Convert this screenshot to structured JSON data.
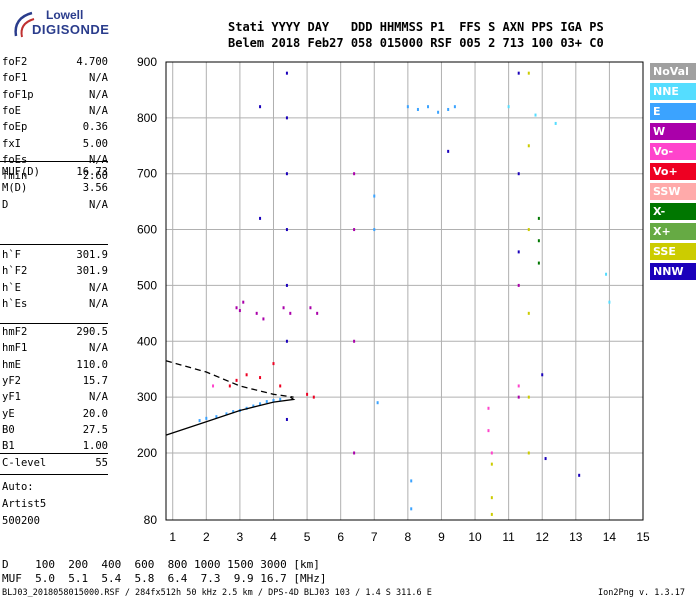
{
  "logo": {
    "line1": "Lowell",
    "line2": "DIGISONDE"
  },
  "header": {
    "line1": "Stati YYYY DAY   DDD HHMMSS P1  FFS S AXN PPS IGA PS",
    "line2": "Belem 2018 Feb27 058 015000 RSF 005 2 713 100 03+ C0"
  },
  "params_group1": [
    {
      "label": "foF2",
      "value": "4.700"
    },
    {
      "label": "foF1",
      "value": "N/A"
    },
    {
      "label": "foF1p",
      "value": "N/A"
    },
    {
      "label": "foE",
      "value": "N/A"
    },
    {
      "label": "foEp",
      "value": "0.36"
    },
    {
      "label": "fxI",
      "value": "5.00"
    },
    {
      "label": "foEs",
      "value": "N/A"
    },
    {
      "label": "fmin",
      "value": "2.60"
    }
  ],
  "params_group2": [
    {
      "label": "MUF(D)",
      "value": "16.73"
    },
    {
      "label": "M(D)",
      "value": "3.56"
    },
    {
      "label": "D",
      "value": "N/A"
    }
  ],
  "params_group3": [
    {
      "label": "h`F",
      "value": "301.9"
    },
    {
      "label": "h`F2",
      "value": "301.9"
    },
    {
      "label": "h`E",
      "value": "N/A"
    },
    {
      "label": "h`Es",
      "value": "N/A"
    }
  ],
  "params_group4": [
    {
      "label": "hmF2",
      "value": "290.5"
    },
    {
      "label": "hmF1",
      "value": "N/A"
    },
    {
      "label": "hmE",
      "value": "110.0"
    },
    {
      "label": "yF2",
      "value": "15.7"
    },
    {
      "label": "yF1",
      "value": "N/A"
    },
    {
      "label": "yE",
      "value": "20.0"
    },
    {
      "label": "B0",
      "value": "27.5"
    },
    {
      "label": "B1",
      "value": "1.00"
    }
  ],
  "params_group5": [
    {
      "label": "C-level",
      "value": "55"
    }
  ],
  "auto": {
    "line1": "Auto:",
    "line2": "Artist5",
    "line3": "500200"
  },
  "legend": [
    {
      "label": "NoVal",
      "color": "#a0a0a0"
    },
    {
      "label": "NNE",
      "color": "#55ddff"
    },
    {
      "label": "E",
      "color": "#3ba3ff"
    },
    {
      "label": "W",
      "color": "#aa00aa"
    },
    {
      "label": "Vo-",
      "color": "#ff44cc"
    },
    {
      "label": "Vo+",
      "color": "#ee0022"
    },
    {
      "label": "SSW",
      "color": "#ffaaaa"
    },
    {
      "label": "X-",
      "color": "#007700"
    },
    {
      "label": "X+",
      "color": "#66aa44"
    },
    {
      "label": "SSE",
      "color": "#cccc00"
    },
    {
      "label": "NNW",
      "color": "#1a00bb"
    }
  ],
  "bottom": {
    "d_row": "D    100  200  400  600  800 1000 1500 3000 [km]",
    "muf_row": "MUF  5.0  5.1  5.4  5.8  6.4  7.3  9.9 16.7 [MHz]"
  },
  "footer": {
    "left": "BLJ03_2018058015000.RSF / 284fx512h 50 kHz 2.5 km / DPS-4D BLJ03 103 / 1.4 S 311.6 E",
    "right": "Ion2Png v. 1.3.17"
  },
  "chart_data": {
    "type": "scatter",
    "xlim": [
      0.8,
      15
    ],
    "ylim": [
      80,
      900
    ],
    "x_ticks": [
      1,
      2,
      3,
      4,
      5,
      6,
      7,
      8,
      9,
      10,
      11,
      12,
      13,
      14,
      15
    ],
    "y_ticks": [
      80,
      200,
      300,
      400,
      500,
      600,
      700,
      800,
      900
    ],
    "grid": true,
    "profile_line": [
      [
        0.8,
        232
      ],
      [
        2.0,
        256
      ],
      [
        3.0,
        276
      ],
      [
        4.0,
        291
      ],
      [
        4.6,
        296
      ],
      [
        4.5,
        300
      ]
    ],
    "trace_dashed": [
      [
        0.8,
        365
      ],
      [
        2.0,
        345
      ],
      [
        3.0,
        320
      ],
      [
        4.0,
        305
      ],
      [
        4.6,
        300
      ]
    ],
    "series": [
      {
        "color": "#3ba3ff",
        "points": [
          [
            1.8,
            258
          ],
          [
            2.0,
            262
          ],
          [
            2.3,
            265
          ],
          [
            2.6,
            270
          ],
          [
            2.8,
            274
          ],
          [
            3.0,
            276
          ],
          [
            3.2,
            280
          ],
          [
            3.4,
            284
          ],
          [
            3.6,
            288
          ],
          [
            3.8,
            292
          ],
          [
            4.0,
            294
          ],
          [
            4.2,
            296
          ]
        ]
      },
      {
        "color": "#aa00aa",
        "points": [
          [
            2.9,
            460
          ],
          [
            3.0,
            455
          ],
          [
            3.1,
            470
          ],
          [
            3.5,
            450
          ],
          [
            3.7,
            440
          ],
          [
            4.3,
            460
          ],
          [
            4.5,
            450
          ],
          [
            5.1,
            460
          ],
          [
            5.3,
            450
          ],
          [
            6.4,
            700
          ],
          [
            6.4,
            600
          ],
          [
            6.4,
            400
          ],
          [
            6.4,
            200
          ],
          [
            11.3,
            500
          ],
          [
            11.3,
            300
          ]
        ]
      },
      {
        "color": "#ee0022",
        "points": [
          [
            2.7,
            320
          ],
          [
            2.9,
            330
          ],
          [
            3.2,
            340
          ],
          [
            3.6,
            335
          ],
          [
            4.0,
            360
          ],
          [
            4.2,
            320
          ],
          [
            5.0,
            305
          ],
          [
            5.2,
            300
          ]
        ]
      },
      {
        "color": "#1a00bb",
        "points": [
          [
            4.4,
            880
          ],
          [
            4.4,
            800
          ],
          [
            4.4,
            700
          ],
          [
            4.4,
            600
          ],
          [
            4.4,
            500
          ],
          [
            4.4,
            400
          ],
          [
            4.4,
            260
          ],
          [
            3.6,
            820
          ],
          [
            3.6,
            620
          ],
          [
            9.2,
            740
          ],
          [
            11.3,
            880
          ],
          [
            11.3,
            700
          ],
          [
            11.3,
            560
          ],
          [
            12.0,
            340
          ],
          [
            12.1,
            190
          ],
          [
            13.1,
            160
          ]
        ]
      },
      {
        "color": "#3ba3ff",
        "points": [
          [
            8.0,
            820
          ],
          [
            8.3,
            815
          ],
          [
            8.6,
            820
          ],
          [
            8.9,
            810
          ],
          [
            9.2,
            815
          ],
          [
            9.4,
            820
          ],
          [
            7.0,
            660
          ],
          [
            7.0,
            600
          ],
          [
            7.1,
            290
          ],
          [
            8.1,
            150
          ],
          [
            8.1,
            100
          ]
        ]
      },
      {
        "color": "#cccc00",
        "points": [
          [
            11.6,
            880
          ],
          [
            11.6,
            750
          ],
          [
            11.6,
            600
          ],
          [
            11.6,
            450
          ],
          [
            11.6,
            300
          ],
          [
            11.6,
            200
          ],
          [
            10.5,
            180
          ],
          [
            10.5,
            120
          ],
          [
            10.5,
            90
          ]
        ]
      },
      {
        "color": "#55ddff",
        "points": [
          [
            11.0,
            820
          ],
          [
            11.8,
            805
          ],
          [
            12.4,
            790
          ],
          [
            13.9,
            520
          ],
          [
            14.0,
            470
          ]
        ]
      },
      {
        "color": "#007700",
        "points": [
          [
            11.9,
            620
          ],
          [
            11.9,
            580
          ],
          [
            11.9,
            540
          ]
        ]
      },
      {
        "color": "#ff44cc",
        "points": [
          [
            10.4,
            280
          ],
          [
            10.4,
            240
          ],
          [
            10.5,
            200
          ],
          [
            11.3,
            320
          ],
          [
            2.2,
            320
          ]
        ]
      }
    ]
  }
}
